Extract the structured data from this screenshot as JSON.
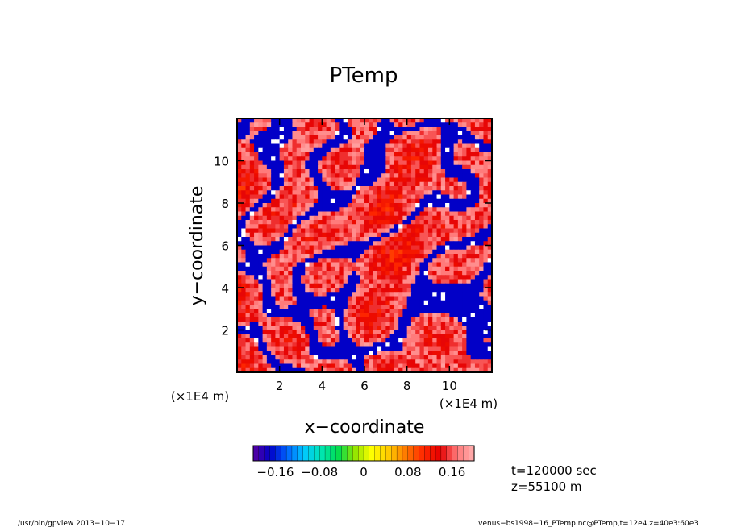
{
  "chart_data": {
    "type": "heatmap",
    "title": "PTemp",
    "xlabel": "x−coordinate",
    "ylabel": "y−coordinate",
    "xlim": [
      0,
      12
    ],
    "ylim": [
      0,
      12
    ],
    "x_ticks": [
      2,
      4,
      6,
      8,
      10
    ],
    "y_ticks": [
      2,
      4,
      6,
      8,
      10
    ],
    "x_tick_labels": [
      "2",
      "4",
      "6",
      "8",
      "10"
    ],
    "y_tick_labels": [
      "2",
      "4",
      "6",
      "8",
      "10"
    ],
    "x_unit": "(×1E4 m)",
    "y_unit": "(×1E4 m)",
    "colorbar": {
      "range": [
        -0.2,
        0.2
      ],
      "levels": 40,
      "tick_values": [
        -0.16,
        -0.08,
        0,
        0.08,
        0.16
      ],
      "tick_labels": [
        "−0.16",
        "−0.08",
        "0",
        "0.08",
        "0.16"
      ],
      "colors_low_to_high": [
        "#5a00a0",
        "#0000c8",
        "#0064ff",
        "#00c8ff",
        "#00e6b4",
        "#00dc50",
        "#96e600",
        "#ffff00",
        "#ffc800",
        "#ff7800",
        "#ff2800",
        "#e60000",
        "#ff7a7a",
        "#ffb0b0"
      ]
    },
    "annotations": [
      "t=120000 sec",
      "z=55100 m"
    ]
  },
  "footer": {
    "left": "/usr/bin/gpview   2013−10−17",
    "right": "venus−bs1998−16_PTemp.nc@PTemp,t=12e4,z=40e3:60e3"
  }
}
